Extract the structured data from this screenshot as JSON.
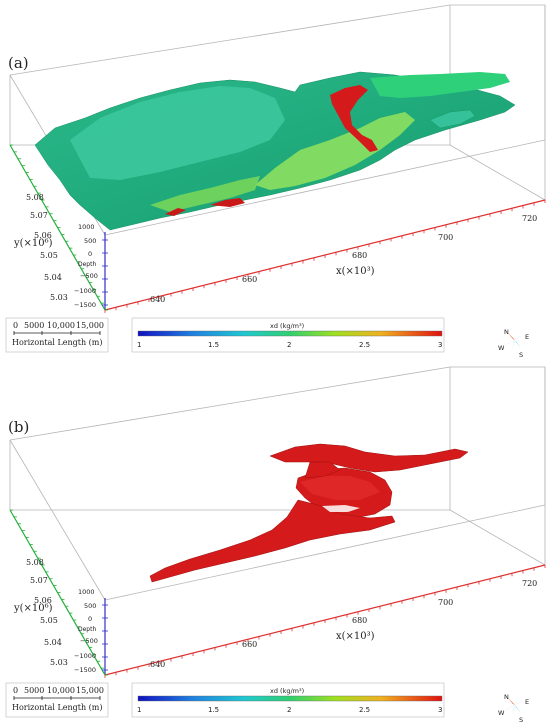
{
  "panels": [
    {
      "id": "a",
      "label": "(a)",
      "y_axis_label": "y(×10⁶)",
      "x_axis_label": "x(×10³)",
      "y_ticks": [
        "5.08",
        "5.07",
        "5.06",
        "5.05",
        "5.04",
        "5.03"
      ],
      "x_ticks": [
        "640",
        "660",
        "680",
        "700",
        "720"
      ],
      "depth_label": "Depth",
      "depth_ticks": [
        "1000",
        "500",
        "0",
        "−500",
        "−1000",
        "−1500"
      ],
      "scale_bar": {
        "ticks": [
          "0",
          "5000",
          "10,000",
          "15,000"
        ],
        "label": "Horizontal Length (m)"
      },
      "colorbar": {
        "title": "xd (kg/m³)",
        "ticks": [
          "1",
          "1.5",
          "2",
          "2.5",
          "3"
        ]
      },
      "compass": {
        "n": "N",
        "e": "E",
        "s": "S",
        "w": "W"
      }
    },
    {
      "id": "b",
      "label": "(b)",
      "y_axis_label": "y(×10⁶)",
      "x_axis_label": "x(×10³)",
      "y_ticks": [
        "5.08",
        "5.07",
        "5.06",
        "5.05",
        "5.04",
        "5.03"
      ],
      "x_ticks": [
        "640",
        "660",
        "680",
        "700",
        "720"
      ],
      "depth_label": "Depth",
      "depth_ticks": [
        "1000",
        "500",
        "0",
        "−500",
        "−1000",
        "−1500"
      ],
      "scale_bar": {
        "ticks": [
          "0",
          "5000",
          "10,000",
          "15,000"
        ],
        "label": "Horizontal Length (m)"
      },
      "colorbar": {
        "title": "xd (kg/m³)",
        "ticks": [
          "1",
          "1.5",
          "2",
          "2.5",
          "3"
        ]
      },
      "compass": {
        "n": "N",
        "e": "E",
        "s": "S",
        "w": "W"
      }
    }
  ],
  "colors": {
    "box_edge": "#b5b5b5",
    "x_axis": "#e03030",
    "y_axis": "#22b03a",
    "z_axis": "#3030c8",
    "model_dark": "#1aa86c",
    "model_teal": "#35c29a",
    "model_light": "#8ce060",
    "body_red": "#d41a1a"
  }
}
